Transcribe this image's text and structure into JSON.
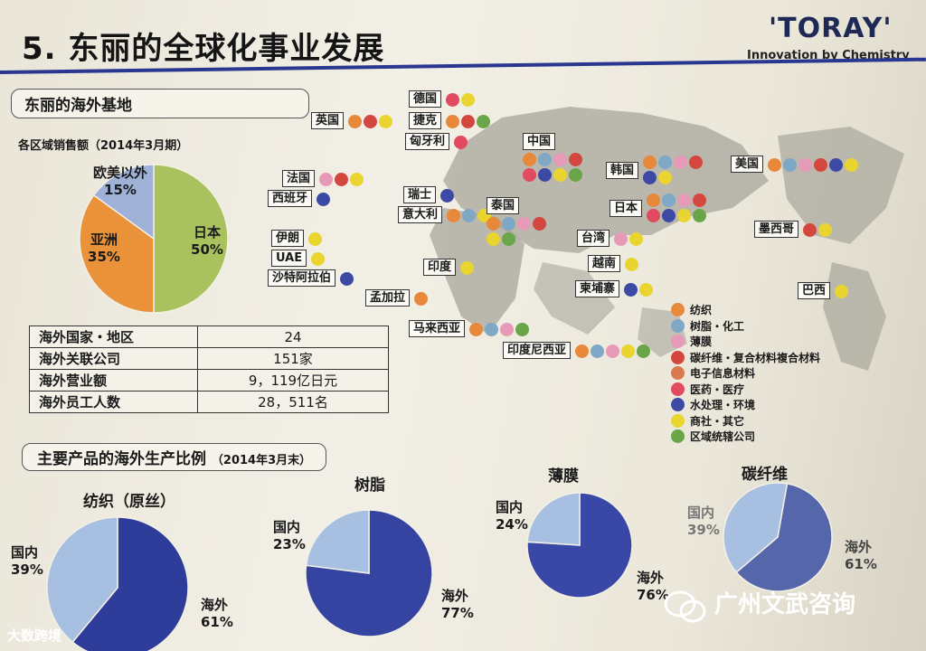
{
  "header": {
    "title": "5. 东丽的全球化事业发展",
    "logo": "'TORAY'",
    "tagline": "Innovation by Chemistry"
  },
  "overseas_base": {
    "heading": "东丽的海外基地"
  },
  "region_sales": {
    "title": "各区域销售额（2014年3月期）"
  },
  "stats": [
    {
      "label": "海外国家・地区",
      "value": "24"
    },
    {
      "label": "海外关联公司",
      "value": "151家"
    },
    {
      "label": "海外营业额",
      "value": "9，119亿日元"
    },
    {
      "label": "海外员工人数",
      "value": "28，511名"
    }
  ],
  "products_heading": {
    "main": "主要产品的海外生产比例",
    "date": "（2014年3月末）"
  },
  "colors": {
    "fiber": "#e8883a",
    "resin": "#7fa7c6",
    "film": "#e69ab8",
    "carbon": "#d4473f",
    "electronic": "#d77a4f",
    "medical": "#e14a5f",
    "water": "#3c4aa5",
    "trading": "#ead42f",
    "regional": "#6aa54a"
  },
  "legend": [
    {
      "key": "fiber",
      "label": "纺织"
    },
    {
      "key": "resin",
      "label": "树脂・化工"
    },
    {
      "key": "film",
      "label": "薄膜"
    },
    {
      "key": "carbon",
      "label": "碳纤维・复合材料複合材料"
    },
    {
      "key": "electronic",
      "label": "电子信息材料"
    },
    {
      "key": "medical",
      "label": "医药・医疗"
    },
    {
      "key": "water",
      "label": "水处理・环境"
    },
    {
      "key": "trading",
      "label": "商社・其它"
    },
    {
      "key": "regional",
      "label": "区域统辖公司"
    }
  ],
  "countries": [
    {
      "name": "德国",
      "dots": [
        "medical",
        "trading"
      ]
    },
    {
      "name": "英国",
      "dots": [
        "fiber",
        "carbon",
        "trading"
      ]
    },
    {
      "name": "捷克",
      "dots": [
        "fiber",
        "carbon",
        "regional"
      ]
    },
    {
      "name": "匈牙利",
      "dots": [
        "medical"
      ]
    },
    {
      "name": "法国",
      "dots": [
        "film",
        "carbon",
        "trading"
      ]
    },
    {
      "name": "西班牙",
      "dots": [
        "water"
      ]
    },
    {
      "name": "瑞士",
      "dots": [
        "water"
      ]
    },
    {
      "name": "意大利",
      "dots": [
        "fiber",
        "resin",
        "trading"
      ]
    },
    {
      "name": "伊朗",
      "dots": [
        "trading"
      ]
    },
    {
      "name": "UAE",
      "dots": [
        "trading"
      ]
    },
    {
      "name": "沙特阿拉伯",
      "dots": [
        "water"
      ]
    },
    {
      "name": "印度",
      "dots": [
        "trading"
      ]
    },
    {
      "name": "孟加拉",
      "dots": [
        "fiber"
      ]
    },
    {
      "name": "马来西亚",
      "dots": [
        "fiber",
        "resin",
        "film",
        "regional"
      ]
    },
    {
      "name": "印度尼西亚",
      "dots": [
        "fiber",
        "resin",
        "film",
        "trading",
        "regional"
      ]
    },
    {
      "name": "中国",
      "dots": [
        "fiber",
        "resin",
        "film",
        "carbon",
        "medical",
        "water",
        "trading",
        "regional"
      ]
    },
    {
      "name": "泰国",
      "dots": [
        "fiber",
        "resin",
        "film",
        "carbon",
        "trading",
        "regional"
      ]
    },
    {
      "name": "台湾",
      "dots": [
        "film",
        "trading"
      ]
    },
    {
      "name": "越南",
      "dots": [
        "trading"
      ]
    },
    {
      "name": "柬埔寨",
      "dots": [
        "water",
        "trading"
      ]
    },
    {
      "name": "韩国",
      "dots": [
        "fiber",
        "resin",
        "film",
        "carbon",
        "water",
        "trading"
      ]
    },
    {
      "name": "日本",
      "dots": [
        "fiber",
        "resin",
        "film",
        "carbon",
        "medical",
        "water",
        "trading",
        "regional"
      ]
    },
    {
      "name": "美国",
      "dots": [
        "fiber",
        "resin",
        "film",
        "carbon",
        "water",
        "trading"
      ]
    },
    {
      "name": "墨西哥",
      "dots": [
        "carbon",
        "trading"
      ]
    },
    {
      "name": "巴西",
      "dots": [
        "trading"
      ]
    }
  ],
  "watermarks": {
    "left": "大数跨境",
    "right": "广州文武咨询"
  },
  "chart_data": [
    {
      "type": "pie",
      "title": "各区域销售额（2014年3月期）",
      "slices": [
        {
          "label": "日本",
          "value": 50,
          "color": "#a9c25e"
        },
        {
          "label": "亚洲",
          "value": 35,
          "color": "#e9923a"
        },
        {
          "label": "欧美以外",
          "value": 15,
          "color": "#9fb1d6"
        }
      ]
    },
    {
      "type": "pie",
      "title": "纺织（原丝）",
      "slices": [
        {
          "label": "海外",
          "value": 61,
          "color": "#2f3d9a"
        },
        {
          "label": "国内",
          "value": 39,
          "color": "#a7bfe0"
        }
      ]
    },
    {
      "type": "pie",
      "title": "树脂",
      "slices": [
        {
          "label": "海外",
          "value": 77,
          "color": "#3444a0"
        },
        {
          "label": "国内",
          "value": 23,
          "color": "#a7bfe0"
        }
      ]
    },
    {
      "type": "pie",
      "title": "薄膜",
      "slices": [
        {
          "label": "海外",
          "value": 76,
          "color": "#3947a6"
        },
        {
          "label": "国内",
          "value": 24,
          "color": "#a7bfe0"
        }
      ]
    },
    {
      "type": "pie",
      "title": "碳纤维",
      "slices": [
        {
          "label": "海外",
          "value": 61,
          "color": "#5566aa"
        },
        {
          "label": "国内",
          "value": 39,
          "color": "#a7bfe0"
        }
      ]
    }
  ]
}
